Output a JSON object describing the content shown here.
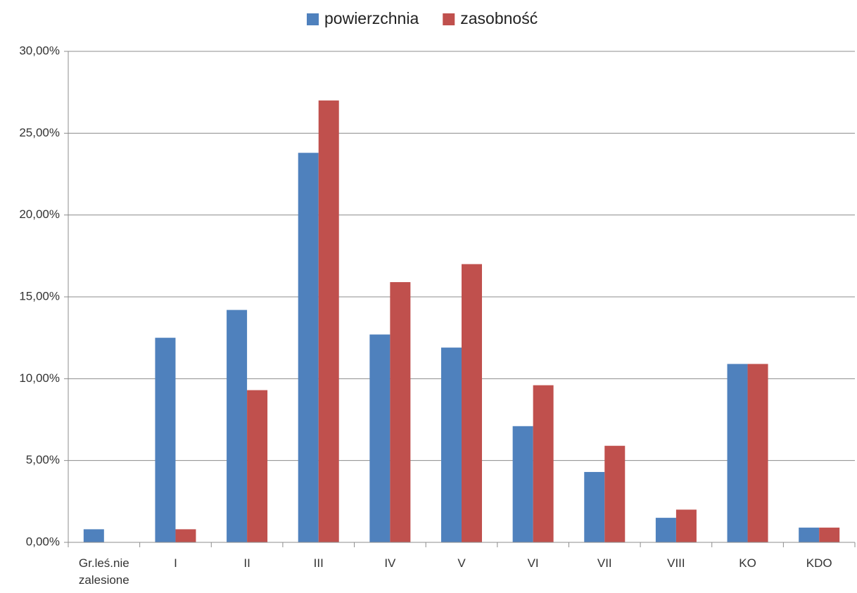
{
  "chart_data": {
    "type": "bar",
    "categories": [
      "Gr.leś.nie zalesione",
      "I",
      "II",
      "III",
      "IV",
      "V",
      "VI",
      "VII",
      "VIII",
      "KO",
      "KDO"
    ],
    "series": [
      {
        "name": "powierzchnia",
        "color": "#4f81bd",
        "values": [
          0.8,
          12.5,
          14.2,
          23.8,
          12.7,
          11.9,
          7.1,
          4.3,
          1.5,
          10.9,
          0.9
        ]
      },
      {
        "name": "zasobność",
        "color": "#c0504d",
        "values": [
          0,
          0.8,
          9.3,
          27.0,
          15.9,
          17.0,
          9.6,
          5.9,
          2.0,
          10.9,
          0.9
        ]
      }
    ],
    "ylim": [
      0,
      30
    ],
    "yticks": [
      {
        "value": 0,
        "label": "0,00%"
      },
      {
        "value": 5,
        "label": "5,00%"
      },
      {
        "value": 10,
        "label": "10,00%"
      },
      {
        "value": 15,
        "label": "15,00%"
      },
      {
        "value": 20,
        "label": "20,00%"
      },
      {
        "value": 25,
        "label": "25,00%"
      },
      {
        "value": 30,
        "label": "30,00%"
      }
    ],
    "grid": true,
    "legend": "top"
  }
}
